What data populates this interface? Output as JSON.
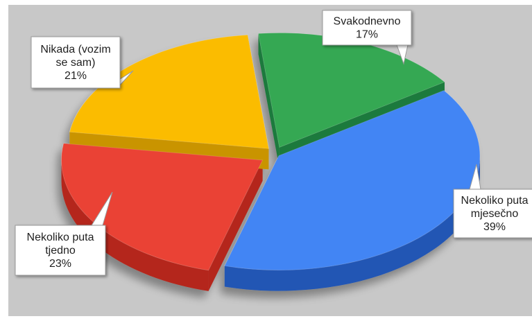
{
  "chart_data": {
    "type": "pie",
    "title": "",
    "slices": [
      {
        "key": "svakodnevno",
        "label_lines": [
          "Svakodnevno"
        ],
        "percent_label": "17%",
        "value": 17,
        "color": "#34a853",
        "side_color": "#1e7a3c"
      },
      {
        "key": "nekoliko-mjesecno",
        "label_lines": [
          "Nekoliko puta",
          "mjesečno"
        ],
        "percent_label": "39%",
        "value": 39,
        "color": "#4285f4",
        "side_color": "#2456b4"
      },
      {
        "key": "nekoliko-tjedno",
        "label_lines": [
          "Nekoliko puta",
          "tjedno"
        ],
        "percent_label": "23%",
        "value": 23,
        "color": "#ea4335",
        "side_color": "#b4271c"
      },
      {
        "key": "nikada",
        "label_lines": [
          "Nikada (vozim",
          "se sam)"
        ],
        "percent_label": "21%",
        "value": 21,
        "color": "#fbbc05",
        "side_color": "#c99400"
      }
    ],
    "style": "3d-exploded-pie",
    "legend": "none",
    "background": "#c8c8c8"
  }
}
